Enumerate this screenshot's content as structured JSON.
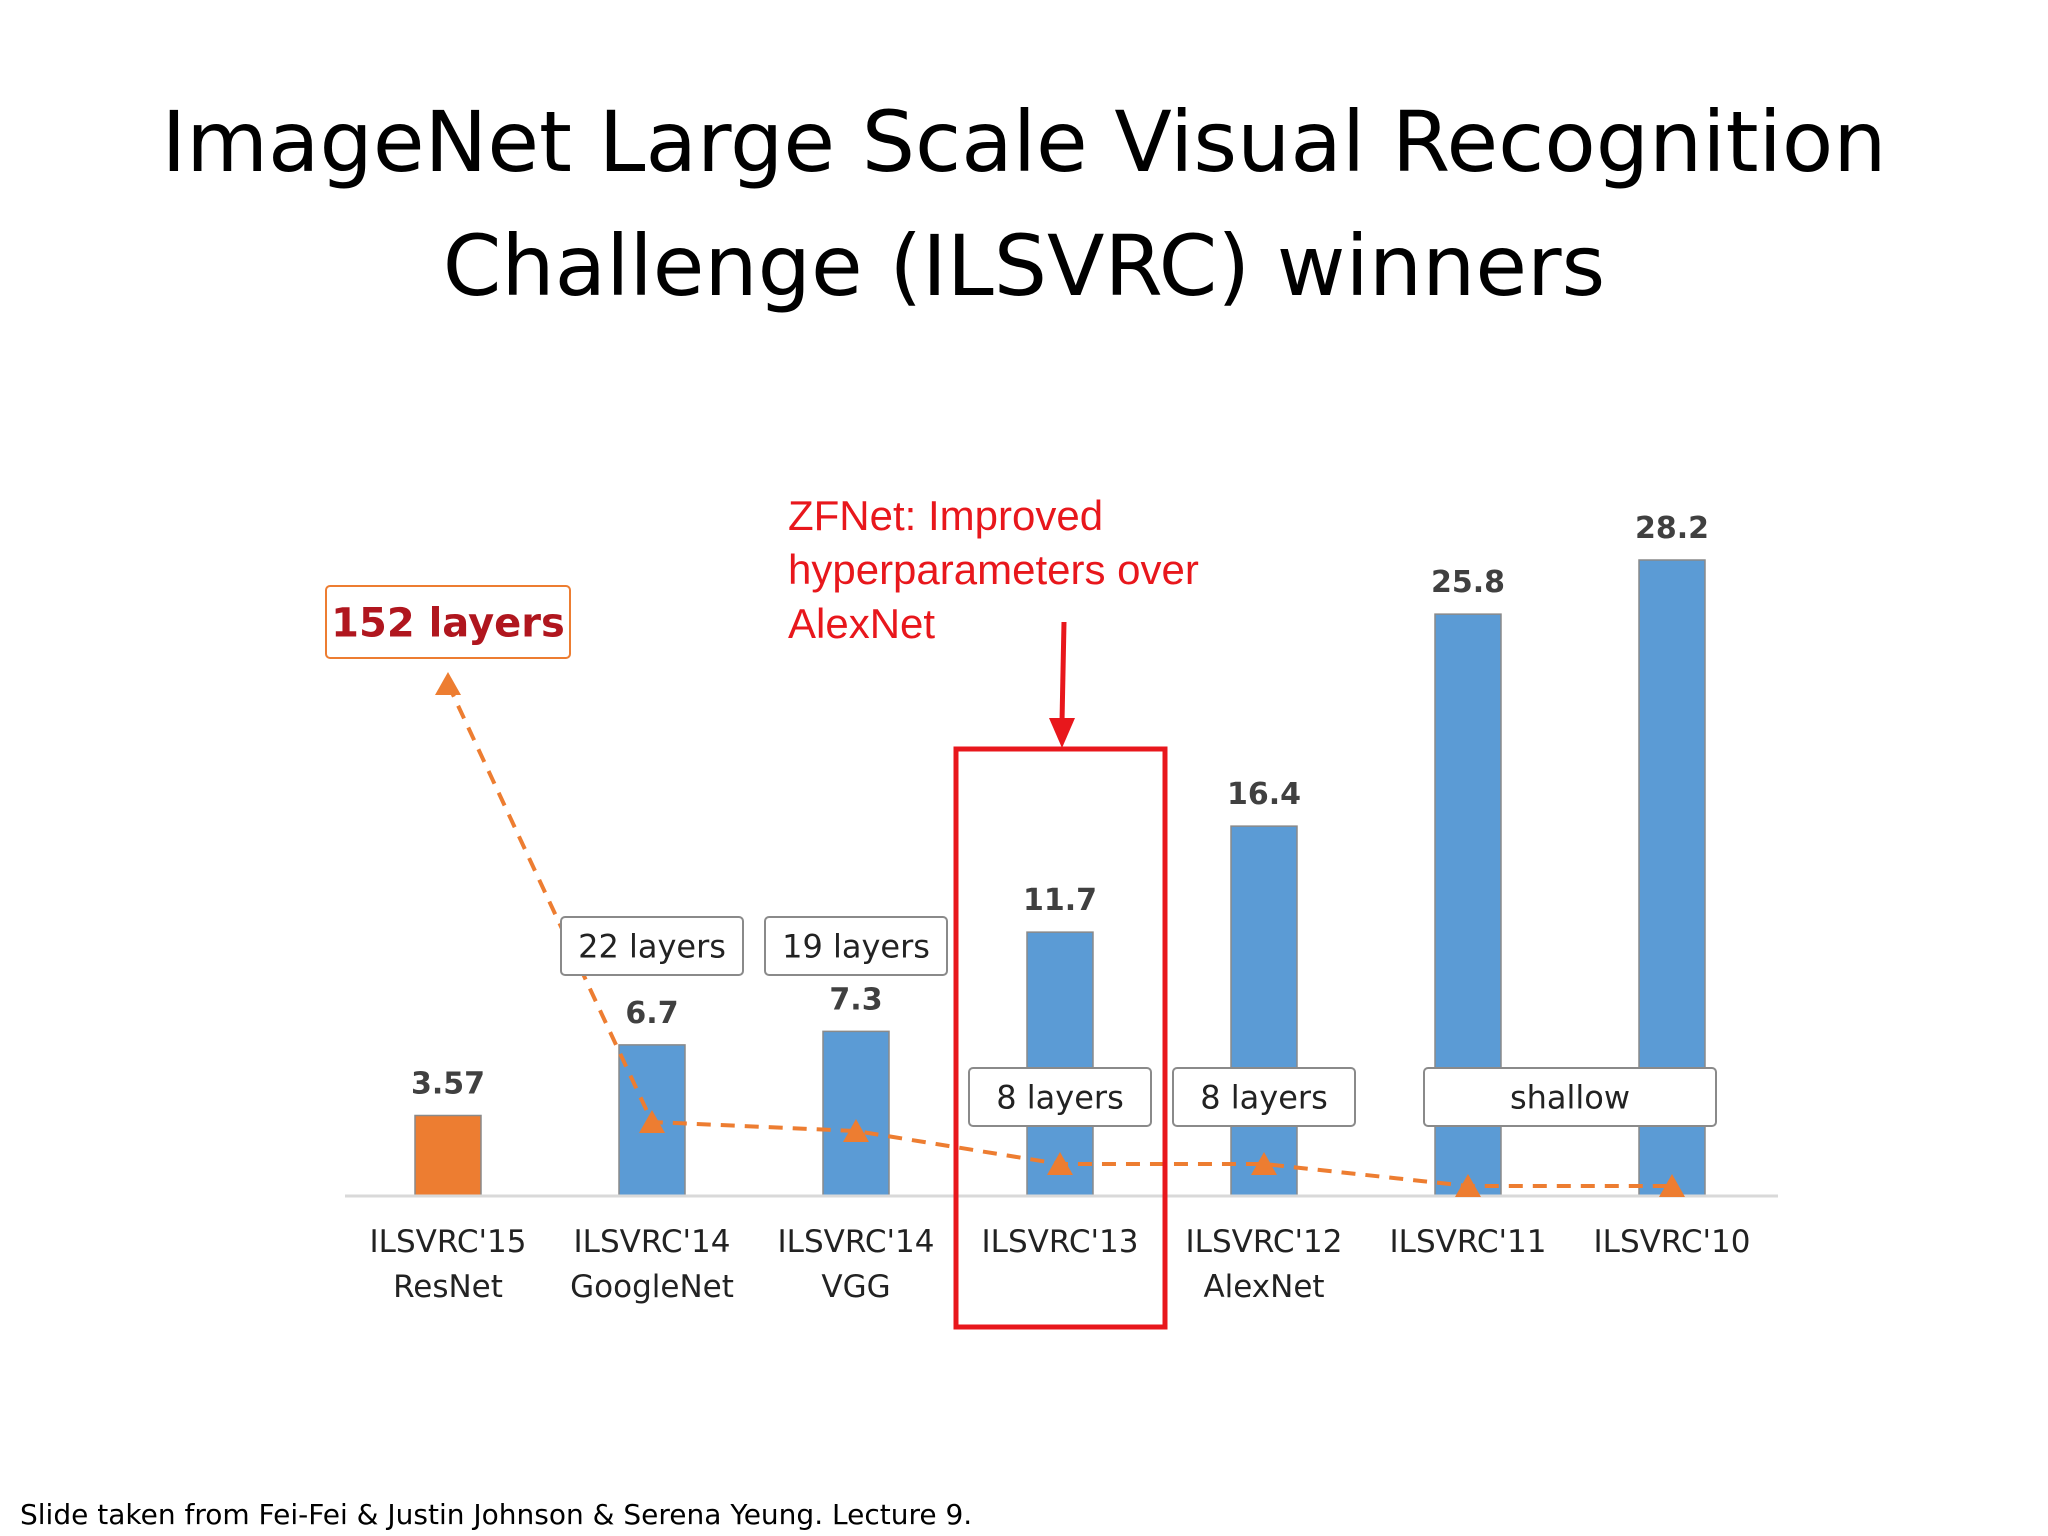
{
  "slide": {
    "title_line1": "ImageNet Large Scale Visual Recognition",
    "title_line2": "Challenge (ILSVRC) winners",
    "footer": "Slide taken from Fei-Fei & Justin Johnson & Serena Yeung. Lecture 9."
  },
  "annotation": {
    "lines": [
      "ZFNet: Improved",
      "hyperparameters over",
      "AlexNet"
    ],
    "color": "#e8171c"
  },
  "chart_data": {
    "type": "bar",
    "categories": [
      [
        "ILSVRC'15",
        "ResNet"
      ],
      [
        "ILSVRC'14",
        "GoogleNet"
      ],
      [
        "ILSVRC'14",
        "VGG"
      ],
      [
        "ILSVRC'13",
        ""
      ],
      [
        "ILSVRC'12",
        "AlexNet"
      ],
      [
        "ILSVRC'11",
        ""
      ],
      [
        "ILSVRC'10",
        ""
      ]
    ],
    "values": [
      3.57,
      6.7,
      7.3,
      11.7,
      16.4,
      25.8,
      28.2
    ],
    "value_labels": [
      "3.57",
      "6.7",
      "7.3",
      "11.7",
      "16.4",
      "25.8",
      "28.2"
    ],
    "bar_colors": [
      "#ed7d31",
      "#5b9bd5",
      "#5b9bd5",
      "#5b9bd5",
      "#5b9bd5",
      "#5b9bd5",
      "#5b9bd5"
    ],
    "ylim": [
      0,
      28.2
    ],
    "grid": false,
    "depth_series": {
      "type": "line",
      "style": "dashed-with-triangle-markers",
      "color": "#ed7d31",
      "layers": [
        152,
        22,
        19,
        8,
        8,
        null,
        null
      ]
    },
    "layer_labels": [
      {
        "text": "152 layers",
        "for": [
          0
        ],
        "emphasis": true
      },
      {
        "text": "22 layers",
        "for": [
          1
        ]
      },
      {
        "text": "19 layers",
        "for": [
          2
        ]
      },
      {
        "text": "8 layers",
        "for": [
          3
        ]
      },
      {
        "text": "8 layers",
        "for": [
          4
        ]
      },
      {
        "text": "shallow",
        "for": [
          5,
          6
        ]
      }
    ],
    "highlight_category": 3
  }
}
